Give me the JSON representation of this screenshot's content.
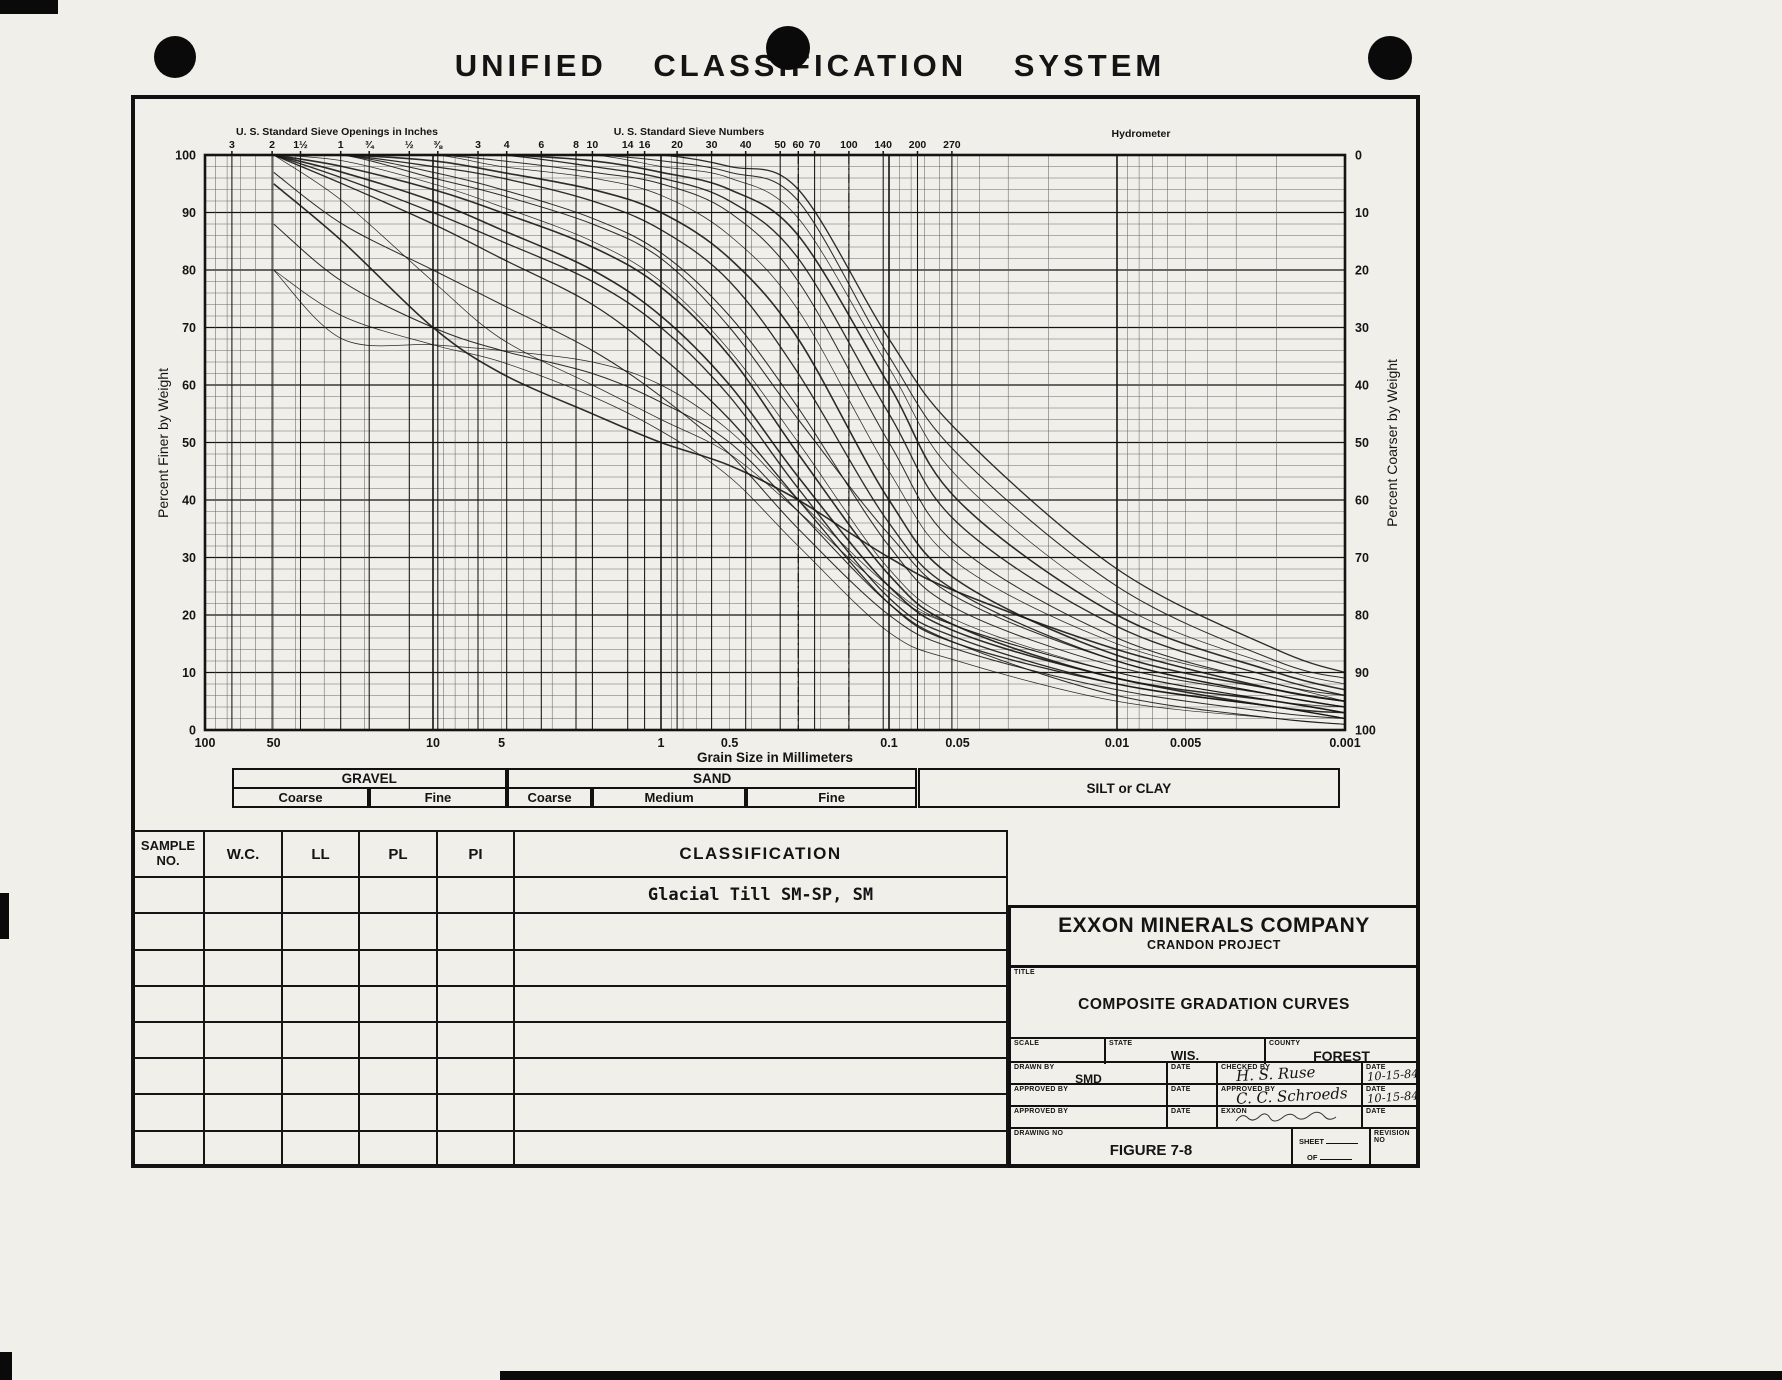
{
  "page_title": "UNIFIED CLASSIFICATION SYSTEM",
  "chart_data": {
    "type": "line",
    "title": "Composite gradation curves: percent finer by weight vs grain size",
    "x_axis": {
      "label": "Grain Size in Millimeters",
      "scale": "log",
      "min_mm": 0.001,
      "max_mm": 100,
      "ticks": [
        {
          "label": "100",
          "mm": 100
        },
        {
          "label": "50",
          "mm": 50
        },
        {
          "label": "10",
          "mm": 10
        },
        {
          "label": "5",
          "mm": 5
        },
        {
          "label": "1",
          "mm": 1
        },
        {
          "label": "0.5",
          "mm": 0.5
        },
        {
          "label": "0.1",
          "mm": 0.1
        },
        {
          "label": "0.05",
          "mm": 0.05
        },
        {
          "label": "0.01",
          "mm": 0.01
        },
        {
          "label": "0.005",
          "mm": 0.005
        },
        {
          "label": "0.001",
          "mm": 0.001
        }
      ]
    },
    "y_left": {
      "label": "Percent Finer by Weight",
      "min": 0,
      "max": 100,
      "ticks": [
        100,
        90,
        80,
        70,
        60,
        50,
        40,
        30,
        20,
        10,
        0
      ]
    },
    "y_right": {
      "label": "Percent Coarser by Weight",
      "min": 0,
      "max": 100,
      "ticks": [
        0,
        10,
        20,
        30,
        40,
        50,
        60,
        70,
        80,
        90,
        100
      ]
    },
    "top_axis": {
      "inches_caption": "U. S. Standard Sieve Openings in Inches",
      "numbers_caption": "U. S. Standard Sieve Numbers",
      "hydrometer_caption": "Hydrometer",
      "sieves": [
        {
          "label": "3",
          "mm": 76.2
        },
        {
          "label": "2",
          "mm": 50.8
        },
        {
          "label": "1½",
          "mm": 38.1
        },
        {
          "label": "1",
          "mm": 25.4
        },
        {
          "label": "¾",
          "mm": 19.05
        },
        {
          "label": "½",
          "mm": 12.7
        },
        {
          "label": "⅜",
          "mm": 9.53
        },
        {
          "label": "3",
          "mm": 6.35
        },
        {
          "label": "4",
          "mm": 4.75
        },
        {
          "label": "6",
          "mm": 3.35
        },
        {
          "label": "8",
          "mm": 2.36
        },
        {
          "label": "10",
          "mm": 2.0
        },
        {
          "label": "14",
          "mm": 1.4
        },
        {
          "label": "16",
          "mm": 1.18
        },
        {
          "label": "20",
          "mm": 0.85
        },
        {
          "label": "30",
          "mm": 0.6
        },
        {
          "label": "40",
          "mm": 0.425
        },
        {
          "label": "50",
          "mm": 0.3
        },
        {
          "label": "60",
          "mm": 0.25
        },
        {
          "label": "70",
          "mm": 0.212
        },
        {
          "label": "100",
          "mm": 0.15
        },
        {
          "label": "140",
          "mm": 0.106
        },
        {
          "label": "200",
          "mm": 0.075
        },
        {
          "label": "270",
          "mm": 0.053
        }
      ]
    },
    "reference_lines_mm": [
      0.25,
      0.15
    ],
    "grain_sizes_mm": [
      50,
      25,
      10,
      5,
      2,
      1,
      0.5,
      0.25,
      0.1,
      0.05,
      0.01,
      0.002,
      0.001
    ],
    "curves": [
      [
        80,
        72,
        67,
        64,
        58,
        52,
        44,
        32,
        17,
        12,
        5,
        2,
        1
      ],
      [
        97,
        88,
        80,
        74,
        66,
        58,
        48,
        35,
        20,
        14,
        7,
        3,
        2
      ],
      [
        100,
        95,
        88,
        82,
        74,
        65,
        54,
        40,
        22,
        15,
        8,
        4,
        2
      ],
      [
        100,
        97,
        92,
        87,
        80,
        72,
        60,
        44,
        25,
        17,
        9,
        4,
        3
      ],
      [
        100,
        99,
        95,
        91,
        85,
        78,
        66,
        50,
        28,
        19,
        10,
        5,
        3
      ],
      [
        100,
        100,
        97,
        94,
        89,
        83,
        72,
        56,
        32,
        21,
        11,
        6,
        4
      ],
      [
        100,
        100,
        98,
        96,
        92,
        87,
        78,
        62,
        36,
        24,
        12,
        6,
        4
      ],
      [
        100,
        100,
        99,
        97,
        94,
        90,
        82,
        68,
        40,
        26,
        13,
        7,
        5
      ],
      [
        100,
        100,
        100,
        98,
        96,
        93,
        86,
        73,
        45,
        29,
        15,
        8,
        5
      ],
      [
        100,
        100,
        100,
        99,
        97,
        95,
        90,
        78,
        50,
        32,
        16,
        8,
        6
      ],
      [
        100,
        100,
        100,
        100,
        98,
        96,
        92,
        82,
        55,
        36,
        18,
        9,
        6
      ],
      [
        100,
        100,
        100,
        100,
        99,
        97,
        94,
        86,
        60,
        40,
        20,
        10,
        7
      ],
      [
        100,
        100,
        100,
        100,
        100,
        98,
        96,
        89,
        63,
        44,
        22,
        11,
        8
      ],
      [
        100,
        100,
        100,
        100,
        100,
        99,
        97,
        92,
        65,
        48,
        25,
        12,
        9
      ],
      [
        100,
        100,
        100,
        100,
        100,
        100,
        98,
        94,
        68,
        52,
        28,
        14,
        10
      ],
      [
        95,
        85,
        70,
        62,
        55,
        50,
        46,
        40,
        30,
        24,
        14,
        7,
        5
      ],
      [
        100,
        92,
        78,
        68,
        60,
        54,
        48,
        38,
        24,
        18,
        10,
        5,
        3
      ],
      [
        88,
        78,
        70,
        66,
        62,
        57,
        50,
        38,
        22,
        15,
        6,
        2,
        1
      ],
      [
        100,
        96,
        90,
        85,
        78,
        70,
        58,
        42,
        23,
        16,
        8,
        4,
        2
      ],
      [
        100,
        98,
        94,
        90,
        84,
        77,
        65,
        48,
        27,
        18,
        9,
        5,
        3
      ],
      [
        80,
        68,
        67,
        66,
        64,
        60,
        52,
        40,
        25,
        18,
        10,
        5,
        4
      ],
      [
        100,
        100,
        96,
        93,
        88,
        82,
        70,
        54,
        34,
        23,
        12,
        6,
        4
      ]
    ]
  },
  "size_bands": {
    "top_row": [
      {
        "label": "GRAVEL",
        "from_mm": 76.2,
        "to_mm": 4.75
      },
      {
        "label": "SAND",
        "from_mm": 4.75,
        "to_mm": 0.075
      }
    ],
    "bottom_row": [
      {
        "label": "Coarse",
        "from_mm": 76.2,
        "to_mm": 19.05
      },
      {
        "label": "Fine",
        "from_mm": 19.05,
        "to_mm": 4.75
      },
      {
        "label": "Coarse",
        "from_mm": 4.75,
        "to_mm": 2.0
      },
      {
        "label": "Medium",
        "from_mm": 2.0,
        "to_mm": 0.425
      },
      {
        "label": "Fine",
        "from_mm": 0.425,
        "to_mm": 0.075
      }
    ],
    "full_height": [
      {
        "label": "SILT or CLAY",
        "from_mm": 0.075,
        "to_mm": 0.00105
      }
    ]
  },
  "sample_table": {
    "headers": [
      "SAMPLE\nNO.",
      "W.C.",
      "LL",
      "PL",
      "PI",
      "CLASSIFICATION"
    ],
    "rows": [
      [
        "",
        "",
        "",
        "",
        "",
        "Glacial Till  SM-SP, SM"
      ],
      [
        "",
        "",
        "",
        "",
        "",
        ""
      ],
      [
        "",
        "",
        "",
        "",
        "",
        ""
      ],
      [
        "",
        "",
        "",
        "",
        "",
        ""
      ],
      [
        "",
        "",
        "",
        "",
        "",
        ""
      ],
      [
        "",
        "",
        "",
        "",
        "",
        ""
      ],
      [
        "",
        "",
        "",
        "",
        "",
        ""
      ],
      [
        "",
        "",
        "",
        "",
        "",
        ""
      ]
    ]
  },
  "title_block": {
    "company": "EXXON MINERALS COMPANY",
    "project": "CRANDON PROJECT",
    "title_label": "TITLE",
    "title": "COMPOSITE GRADATION CURVES",
    "scale_label": "SCALE",
    "scale_value": "",
    "state_label": "STATE",
    "state_value": "WIS.",
    "county_label": "COUNTY",
    "county_value": "FOREST",
    "sign_rows": [
      {
        "left_label": "DRAWN BY",
        "left_value": "SMD",
        "date_left_label": "DATE",
        "date_left": "",
        "right_label": "CHECKED BY",
        "right_value": "H. S. Ruse",
        "date_right_label": "DATE",
        "date_right": "10-15-84"
      },
      {
        "left_label": "APPROVED BY",
        "left_value": "",
        "date_left_label": "DATE",
        "date_left": "",
        "right_label": "APPROVED BY",
        "right_value": "C. C. Schroeds",
        "date_right_label": "DATE",
        "date_right": "10-15-84"
      },
      {
        "left_label": "APPROVED BY",
        "left_value": "",
        "date_left_label": "DATE",
        "date_left": "",
        "right_label": "EXXON",
        "right_value": "",
        "date_right_label": "DATE",
        "date_right": ""
      }
    ],
    "drawing_no_label": "DRAWING NO",
    "drawing_no": "FIGURE 7-8",
    "sheet_label": "SHEET",
    "of_label": "OF",
    "revision_label": "REVISION NO"
  }
}
